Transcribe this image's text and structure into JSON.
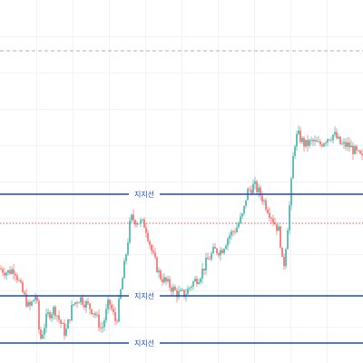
{
  "chart_data": {
    "type": "candlestick",
    "ylim": [
      0,
      100
    ],
    "xlim": [
      0,
      100
    ],
    "grid": true,
    "colors": {
      "up": "#26a69a",
      "down": "#ef5350",
      "support_line": "#1848cc",
      "dashed_line": "#b0b3bb",
      "dotted_line": "#ef5350"
    },
    "reference_lines": {
      "dashed": 86,
      "dotted": 38.5
    },
    "support_lines": [
      {
        "label": "지지선",
        "value": 46.5
      },
      {
        "label": "지지선",
        "value": 18.5
      },
      {
        "label": "지지선",
        "value": 5.5
      }
    ],
    "price_path": [
      [
        0,
        26
      ],
      [
        2,
        25
      ],
      [
        4,
        26
      ],
      [
        6,
        20
      ],
      [
        8,
        15
      ],
      [
        10,
        19
      ],
      [
        11,
        6
      ],
      [
        13,
        13
      ],
      [
        15,
        15
      ],
      [
        18,
        8
      ],
      [
        20,
        16
      ],
      [
        22,
        18
      ],
      [
        24,
        16
      ],
      [
        26,
        14
      ],
      [
        28,
        9
      ],
      [
        30,
        17
      ],
      [
        32,
        11
      ],
      [
        33,
        18
      ],
      [
        35,
        32
      ],
      [
        36,
        40
      ],
      [
        38,
        39
      ],
      [
        40,
        38
      ],
      [
        42,
        30
      ],
      [
        44,
        24
      ],
      [
        46,
        22
      ],
      [
        49,
        19
      ],
      [
        51,
        19
      ],
      [
        53,
        22
      ],
      [
        55,
        24
      ],
      [
        57,
        28
      ],
      [
        59,
        31
      ],
      [
        61,
        31
      ],
      [
        63,
        35
      ],
      [
        65,
        37
      ],
      [
        67,
        41
      ],
      [
        68,
        47
      ],
      [
        70,
        49
      ],
      [
        72,
        46
      ],
      [
        74,
        42
      ],
      [
        76,
        38
      ],
      [
        77,
        36
      ],
      [
        78,
        25
      ],
      [
        79,
        35
      ],
      [
        80,
        46
      ],
      [
        81,
        60
      ],
      [
        82,
        63
      ],
      [
        84,
        60
      ],
      [
        86,
        61
      ],
      [
        88,
        60
      ],
      [
        90,
        62
      ],
      [
        92,
        63
      ],
      [
        94,
        60
      ],
      [
        96,
        60
      ],
      [
        98,
        58
      ],
      [
        100,
        56
      ]
    ]
  }
}
